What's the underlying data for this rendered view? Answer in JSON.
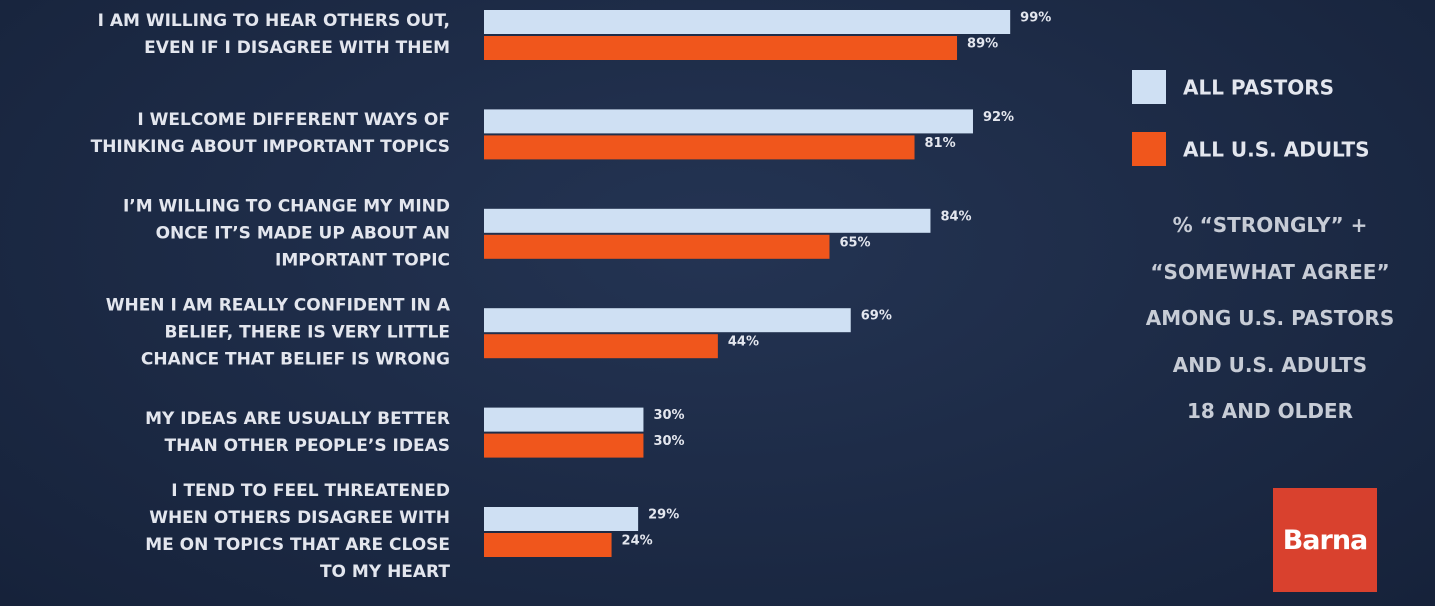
{
  "chart_data": {
    "type": "bar",
    "orientation": "horizontal",
    "subtitle": "% “STRONGLY” +\n“SOMEWHAT AGREE”\nAMONG U.S. PASTORS\nAND U.S. ADULTS\n18 AND OLDER",
    "categories": [
      "I AM WILLING TO HEAR OTHERS OUT,\nEVEN IF I DISAGREE WITH THEM",
      "I WELCOME DIFFERENT WAYS OF\nTHINKING ABOUT IMPORTANT TOPICS",
      "I’M WILLING TO CHANGE MY MIND\nONCE IT’S MADE UP ABOUT AN\nIMPORTANT TOPIC",
      "WHEN I AM REALLY CONFIDENT IN A\nBELIEF, THERE IS VERY LITTLE\nCHANCE THAT BELIEF IS WRONG",
      "MY IDEAS ARE USUALLY BETTER\nTHAN OTHER PEOPLE’S IDEAS",
      "I TEND TO FEEL THREATENED\nWHEN OTHERS DISAGREE WITH\nME ON TOPICS THAT ARE CLOSE\nTO MY HEART"
    ],
    "series": [
      {
        "name": "ALL PASTORS",
        "color": "#cfe0f3",
        "values": [
          99,
          92,
          84,
          69,
          30,
          29
        ],
        "value_labels": [
          "99%",
          "92%",
          "84%",
          "69%",
          "30%",
          "29%"
        ]
      },
      {
        "name": "ALL U.S. ADULTS",
        "color": "#f0561c",
        "values": [
          89,
          81,
          65,
          44,
          30,
          24
        ],
        "value_labels": [
          "89%",
          "81%",
          "65%",
          "44%",
          "30%",
          "24%"
        ]
      }
    ],
    "xlim": [
      0,
      100
    ]
  },
  "logo": "Barna"
}
